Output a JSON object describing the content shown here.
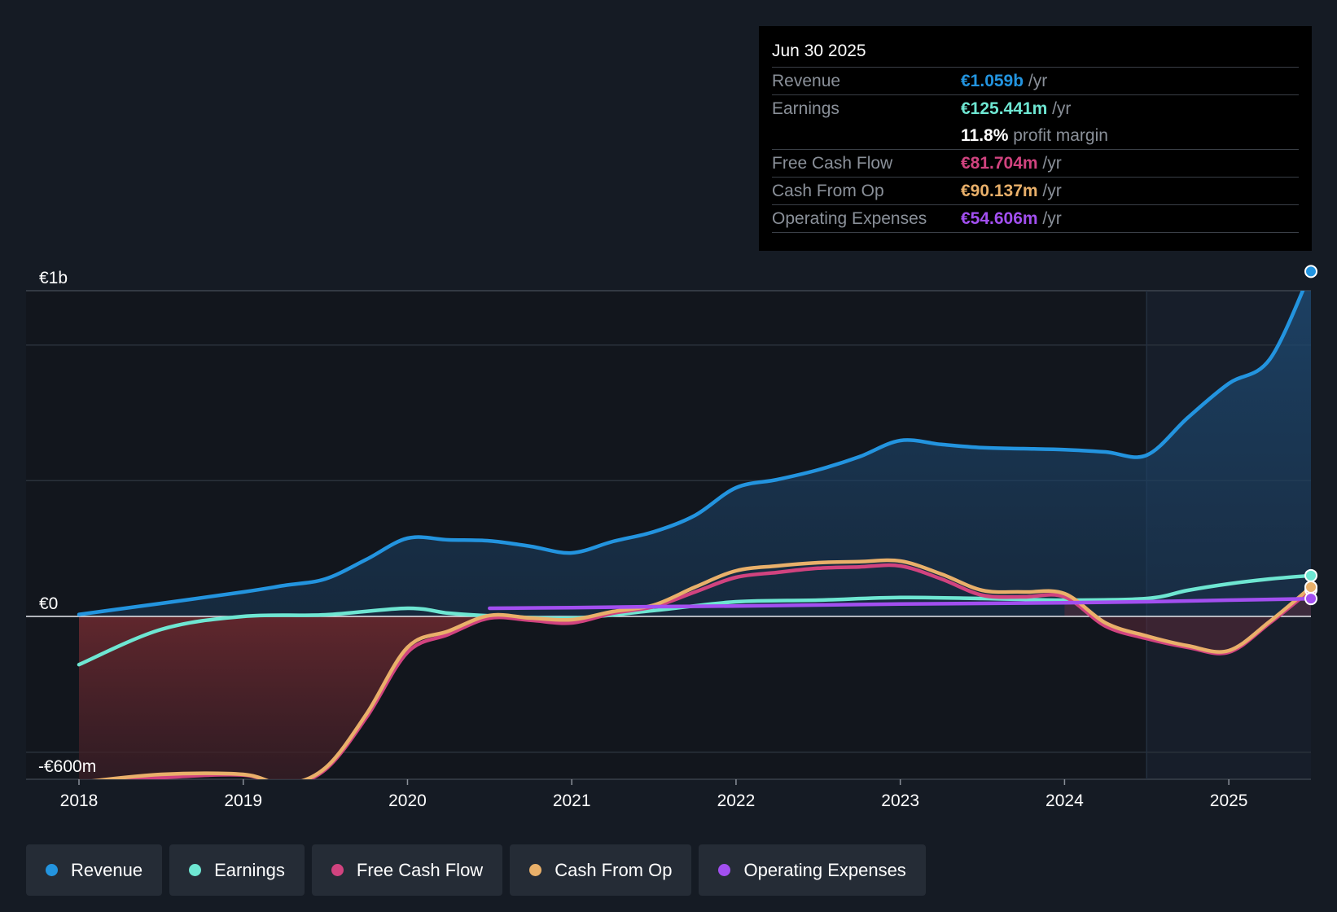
{
  "chart_data": {
    "type": "area",
    "title": "",
    "xlabel": "",
    "ylabel": "",
    "ylim": [
      -600,
      1000
    ],
    "y_tick_labels": [
      "€1b",
      "€0",
      "-€600m"
    ],
    "x_ticks": [
      2018,
      2019,
      2020,
      2021,
      2022,
      2023,
      2024,
      2025
    ],
    "x_tick_labels": [
      "2018",
      "2019",
      "2020",
      "2021",
      "2022",
      "2023",
      "2024",
      "2025"
    ],
    "x_range": [
      2017.68,
      2025.5
    ],
    "forecast_shading_start": 2024.5,
    "series": [
      {
        "name": "Revenue",
        "color": "#2394df",
        "points": [
          [
            2018.0,
            6
          ],
          [
            2018.5,
            40
          ],
          [
            2019.0,
            75
          ],
          [
            2019.25,
            95
          ],
          [
            2019.5,
            115
          ],
          [
            2019.75,
            175
          ],
          [
            2020.0,
            240
          ],
          [
            2020.25,
            235
          ],
          [
            2020.5,
            232
          ],
          [
            2020.75,
            215
          ],
          [
            2021.0,
            195
          ],
          [
            2021.25,
            230
          ],
          [
            2021.5,
            260
          ],
          [
            2021.75,
            310
          ],
          [
            2022.0,
            395
          ],
          [
            2022.25,
            420
          ],
          [
            2022.5,
            450
          ],
          [
            2022.75,
            490
          ],
          [
            2023.0,
            540
          ],
          [
            2023.25,
            528
          ],
          [
            2023.5,
            518
          ],
          [
            2023.75,
            515
          ],
          [
            2024.0,
            512
          ],
          [
            2024.25,
            505
          ],
          [
            2024.5,
            495
          ],
          [
            2024.75,
            610
          ],
          [
            2025.0,
            715
          ],
          [
            2025.25,
            790
          ],
          [
            2025.5,
            1059
          ]
        ]
      },
      {
        "name": "Earnings",
        "color": "#6ee6d2",
        "points": [
          [
            2018.0,
            -148
          ],
          [
            2018.5,
            -40
          ],
          [
            2019.0,
            0
          ],
          [
            2019.5,
            5
          ],
          [
            2020.0,
            25
          ],
          [
            2020.25,
            10
          ],
          [
            2020.5,
            2
          ],
          [
            2021.0,
            -5
          ],
          [
            2021.5,
            18
          ],
          [
            2022.0,
            45
          ],
          [
            2022.5,
            50
          ],
          [
            2023.0,
            58
          ],
          [
            2023.5,
            55
          ],
          [
            2024.0,
            50
          ],
          [
            2024.5,
            55
          ],
          [
            2024.75,
            80
          ],
          [
            2025.0,
            100
          ],
          [
            2025.25,
            115
          ],
          [
            2025.5,
            125.441
          ]
        ]
      },
      {
        "name": "Free Cash Flow",
        "color": "#d1437f",
        "points": [
          [
            2018.0,
            -515
          ],
          [
            2018.5,
            -495
          ],
          [
            2019.0,
            -487
          ],
          [
            2019.25,
            -518
          ],
          [
            2019.5,
            -470
          ],
          [
            2019.75,
            -310
          ],
          [
            2020.0,
            -110
          ],
          [
            2020.25,
            -55
          ],
          [
            2020.5,
            -5
          ],
          [
            2020.75,
            -12
          ],
          [
            2021.0,
            -20
          ],
          [
            2021.25,
            10
          ],
          [
            2021.5,
            30
          ],
          [
            2021.75,
            75
          ],
          [
            2022.0,
            120
          ],
          [
            2022.25,
            135
          ],
          [
            2022.5,
            148
          ],
          [
            2022.75,
            152
          ],
          [
            2023.0,
            155
          ],
          [
            2023.25,
            115
          ],
          [
            2023.5,
            65
          ],
          [
            2023.75,
            60
          ],
          [
            2024.0,
            60
          ],
          [
            2024.25,
            -30
          ],
          [
            2024.5,
            -68
          ],
          [
            2024.75,
            -95
          ],
          [
            2025.0,
            -110
          ],
          [
            2025.25,
            -20
          ],
          [
            2025.5,
            81.704
          ]
        ]
      },
      {
        "name": "Cash From Op",
        "color": "#e9b06a",
        "points": [
          [
            2018.0,
            -510
          ],
          [
            2018.5,
            -485
          ],
          [
            2019.0,
            -485
          ],
          [
            2019.25,
            -515
          ],
          [
            2019.5,
            -465
          ],
          [
            2019.75,
            -300
          ],
          [
            2020.0,
            -95
          ],
          [
            2020.25,
            -45
          ],
          [
            2020.5,
            3
          ],
          [
            2020.75,
            -5
          ],
          [
            2021.0,
            -10
          ],
          [
            2021.25,
            15
          ],
          [
            2021.5,
            35
          ],
          [
            2021.75,
            90
          ],
          [
            2022.0,
            140
          ],
          [
            2022.25,
            155
          ],
          [
            2022.5,
            165
          ],
          [
            2022.75,
            168
          ],
          [
            2023.0,
            170
          ],
          [
            2023.25,
            130
          ],
          [
            2023.5,
            80
          ],
          [
            2023.75,
            75
          ],
          [
            2024.0,
            70
          ],
          [
            2024.25,
            -20
          ],
          [
            2024.5,
            -60
          ],
          [
            2024.75,
            -90
          ],
          [
            2025.0,
            -105
          ],
          [
            2025.25,
            -15
          ],
          [
            2025.5,
            90.137
          ]
        ]
      },
      {
        "name": "Operating Expenses",
        "color": "#a24ff0",
        "points": [
          [
            2020.5,
            25
          ],
          [
            2021.0,
            27
          ],
          [
            2021.5,
            30
          ],
          [
            2022.0,
            32
          ],
          [
            2022.5,
            35
          ],
          [
            2023.0,
            38
          ],
          [
            2023.5,
            40
          ],
          [
            2024.0,
            42
          ],
          [
            2024.5,
            45
          ],
          [
            2025.0,
            50
          ],
          [
            2025.5,
            54.606
          ]
        ]
      }
    ]
  },
  "tooltip": {
    "date": "Jun 30 2025",
    "rows": [
      {
        "label": "Revenue",
        "value": "€1.059b",
        "unit": "/yr",
        "color": "#2394df"
      },
      {
        "label": "Earnings",
        "value": "€125.441m",
        "unit": "/yr",
        "color": "#6ee6d2"
      },
      {
        "label": "",
        "value": "11.8%",
        "unit": "profit margin",
        "color": "#ffffff"
      },
      {
        "label": "Free Cash Flow",
        "value": "€81.704m",
        "unit": "/yr",
        "color": "#d1437f"
      },
      {
        "label": "Cash From Op",
        "value": "€90.137m",
        "unit": "/yr",
        "color": "#e9b06a"
      },
      {
        "label": "Operating Expenses",
        "value": "€54.606m",
        "unit": "/yr",
        "color": "#a24ff0"
      }
    ]
  },
  "legend": [
    {
      "label": "Revenue",
      "color": "#2394df"
    },
    {
      "label": "Earnings",
      "color": "#6ee6d2"
    },
    {
      "label": "Free Cash Flow",
      "color": "#d1437f"
    },
    {
      "label": "Cash From Op",
      "color": "#e9b06a"
    },
    {
      "label": "Operating Expenses",
      "color": "#a24ff0"
    }
  ]
}
